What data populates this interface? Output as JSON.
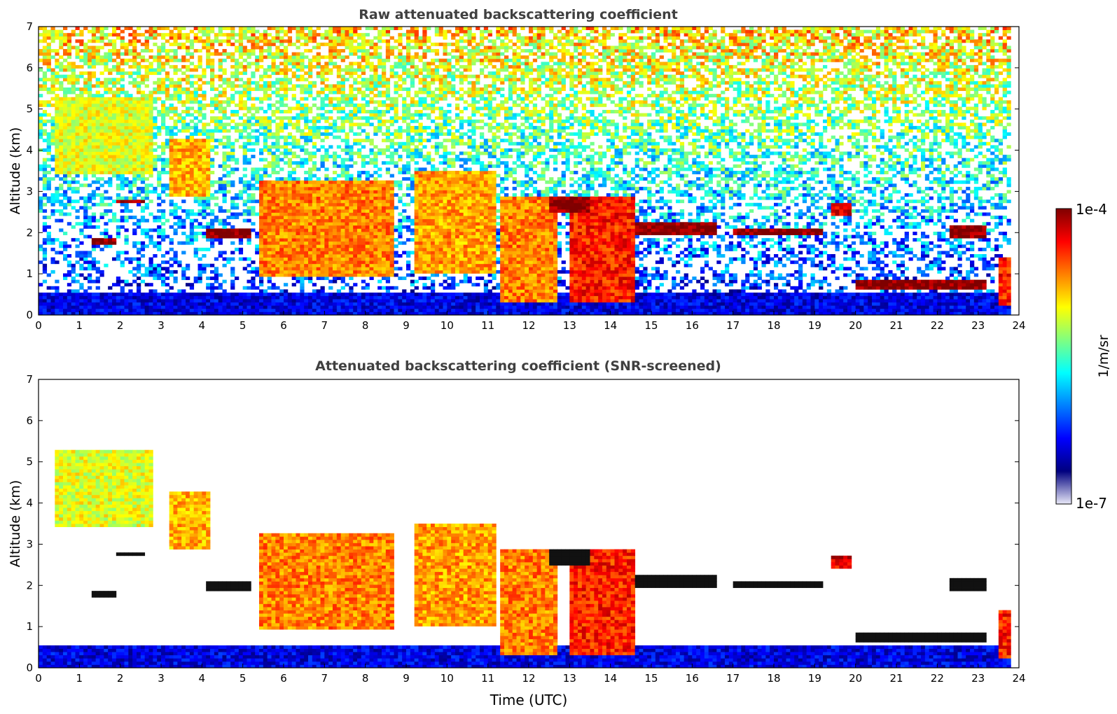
{
  "chart_data": [
    {
      "type": "heatmap",
      "title": "Raw attenuated backscattering coefficient",
      "xlabel": "",
      "ylabel": "Altitude (km)",
      "xlim": [
        0,
        24
      ],
      "ylim": [
        0,
        7
      ],
      "xticks": [
        "0",
        "1",
        "2",
        "3",
        "4",
        "5",
        "6",
        "7",
        "8",
        "9",
        "10",
        "11",
        "12",
        "13",
        "14",
        "15",
        "16",
        "17",
        "18",
        "19",
        "20",
        "21",
        "22",
        "23",
        "24"
      ],
      "yticks": [
        "0",
        "1",
        "2",
        "3",
        "4",
        "5",
        "6",
        "7"
      ],
      "data_end_hour": 23.8,
      "grid": false,
      "background_noise": "random speckle increasing with altitude",
      "features": [
        {
          "kind": "near-surface aerosol layer",
          "x": [
            0,
            23.8
          ],
          "y": [
            0,
            0.55
          ],
          "level": 0.1
        },
        {
          "kind": "cirrus",
          "x": [
            0.4,
            2.8
          ],
          "y": [
            3.4,
            5.3
          ],
          "level": 0.6
        },
        {
          "kind": "cirrus",
          "x": [
            3.2,
            4.2
          ],
          "y": [
            2.9,
            4.3
          ],
          "level": 0.7
        },
        {
          "kind": "thin liquid cloud",
          "x": [
            1.9,
            2.6
          ],
          "y": [
            2.7,
            2.8
          ],
          "level": 1.0
        },
        {
          "kind": "thin liquid cloud",
          "x": [
            1.3,
            1.9
          ],
          "y": [
            1.7,
            1.9
          ],
          "level": 1.0
        },
        {
          "kind": "thin liquid cloud",
          "x": [
            4.1,
            5.2
          ],
          "y": [
            1.9,
            2.1
          ],
          "level": 1.0
        },
        {
          "kind": "precipitating cloud",
          "x": [
            5.4,
            8.7
          ],
          "y": [
            0.9,
            3.3
          ],
          "level": 0.75
        },
        {
          "kind": "precipitating cloud",
          "x": [
            9.2,
            11.2
          ],
          "y": [
            1.0,
            3.5
          ],
          "level": 0.72
        },
        {
          "kind": "precipitating cloud",
          "x": [
            11.3,
            12.7
          ],
          "y": [
            0.3,
            2.9
          ],
          "level": 0.75
        },
        {
          "kind": "thin liquid cloud",
          "x": [
            12.5,
            13.5
          ],
          "y": [
            2.5,
            2.9
          ],
          "level": 1.0
        },
        {
          "kind": "precipitating cloud",
          "x": [
            13.0,
            14.6
          ],
          "y": [
            0.3,
            2.9
          ],
          "level": 0.85
        },
        {
          "kind": "thin liquid cloud",
          "x": [
            14.6,
            16.6
          ],
          "y": [
            1.95,
            2.25
          ],
          "level": 1.0
        },
        {
          "kind": "thin liquid cloud",
          "x": [
            17.0,
            19.2
          ],
          "y": [
            1.95,
            2.1
          ],
          "level": 1.0
        },
        {
          "kind": "thin liquid cloud",
          "x": [
            19.4,
            19.9
          ],
          "y": [
            2.4,
            2.7
          ],
          "level": 0.9
        },
        {
          "kind": "low stratus",
          "x": [
            20.0,
            23.2
          ],
          "y": [
            0.6,
            0.85
          ],
          "level": 1.0
        },
        {
          "kind": "thin liquid cloud",
          "x": [
            22.3,
            23.2
          ],
          "y": [
            1.9,
            2.2
          ],
          "level": 1.0
        },
        {
          "kind": "boundary layer cloud",
          "x": [
            23.5,
            23.8
          ],
          "y": [
            0.2,
            1.4
          ],
          "level": 0.85
        }
      ]
    },
    {
      "type": "heatmap",
      "title": "Attenuated backscattering coefficient (SNR-screened)",
      "xlabel": "Time (UTC)",
      "ylabel": "Altitude (km)",
      "xlim": [
        0,
        24
      ],
      "ylim": [
        0,
        7
      ],
      "xticks": [
        "0",
        "1",
        "2",
        "3",
        "4",
        "5",
        "6",
        "7",
        "8",
        "9",
        "10",
        "11",
        "12",
        "13",
        "14",
        "15",
        "16",
        "17",
        "18",
        "19",
        "20",
        "21",
        "22",
        "23",
        "24"
      ],
      "yticks": [
        "0",
        "1",
        "2",
        "3",
        "4",
        "5",
        "6",
        "7"
      ],
      "data_end_hour": 23.8,
      "grid": false,
      "background_noise": "screened out (white)",
      "same_features_as": 0
    }
  ],
  "colorbar": {
    "label": "1/m/sr",
    "min_label": "1e-7",
    "max_label": "1e-4",
    "colormap": "jet"
  },
  "colors": {
    "jet_stops": [
      "#00007f",
      "#0000ff",
      "#0080ff",
      "#00ffff",
      "#80ff80",
      "#ffff00",
      "#ff8000",
      "#ff0000",
      "#7f0000"
    ],
    "low_end": "#e8e8f8",
    "title_color": "#404040"
  }
}
